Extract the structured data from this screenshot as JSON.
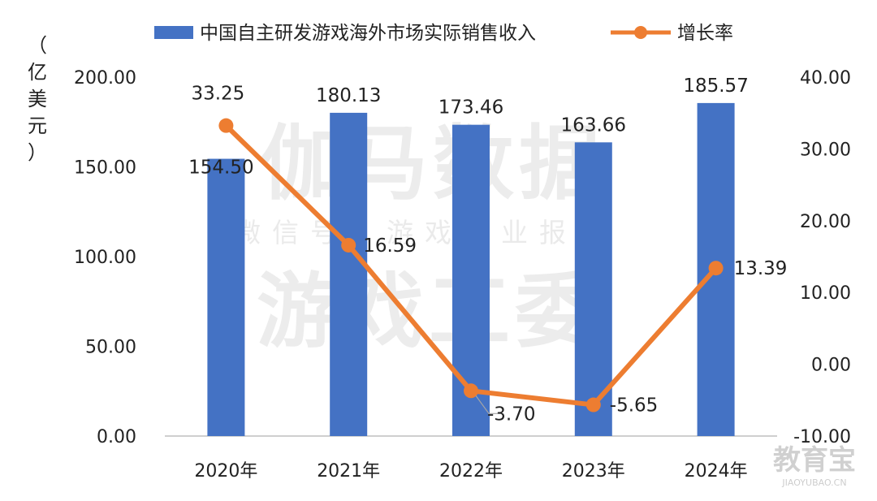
{
  "chart_data": {
    "type": "bar+line",
    "categories": [
      "2020年",
      "2021年",
      "2022年",
      "2023年",
      "2024年"
    ],
    "series": [
      {
        "name": "中国自主研发游戏海外市场实际销售收入",
        "type": "bar",
        "axis": "left",
        "color": "#4472C4",
        "values": [
          154.5,
          180.13,
          173.46,
          163.66,
          185.57
        ],
        "labels": [
          "154.50",
          "180.13",
          "173.46",
          "163.66",
          "185.57"
        ]
      },
      {
        "name": "增长率",
        "type": "line",
        "axis": "right",
        "color": "#ED7D31",
        "values": [
          33.25,
          16.59,
          -3.7,
          -5.65,
          13.39
        ],
        "labels": [
          "33.25",
          "16.59",
          "-3.70",
          "-5.65",
          "13.39"
        ]
      }
    ],
    "left_axis": {
      "label": "（亿美元）",
      "label_chars": [
        "（",
        "亿",
        "美",
        "元",
        "）"
      ],
      "range": [
        0,
        200
      ],
      "ticks": [
        "0.00",
        "50.00",
        "100.00",
        "150.00",
        "200.00"
      ]
    },
    "right_axis": {
      "range": [
        -10,
        40
      ],
      "ticks": [
        "-10.00",
        "0.00",
        "10.00",
        "20.00",
        "30.00",
        "40.00"
      ]
    },
    "legend_position": "top",
    "grid": false
  },
  "watermark": {
    "line1": "伽马数据",
    "line2": "微信号：游戏产业报告",
    "line3": "游戏工委"
  },
  "logo": {
    "text": "教育宝",
    "subtext": "JIAOYUBAO.CN"
  }
}
